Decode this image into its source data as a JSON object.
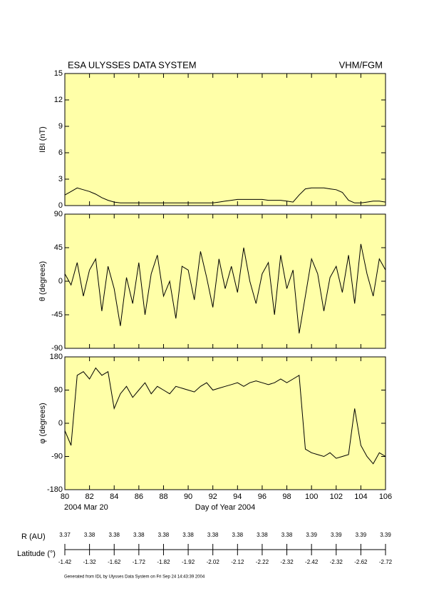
{
  "header": {
    "title": "ESA ULYSSES DATA SYSTEM",
    "instrument": "VHM/FGM"
  },
  "chart_data": [
    {
      "type": "line",
      "ylabel": "IBI (nT)",
      "color": "#000000",
      "background": "#ffffa8",
      "xlim": [
        80,
        106
      ],
      "xticks": [
        80,
        82,
        84,
        86,
        88,
        90,
        92,
        94,
        96,
        98,
        100,
        102,
        104,
        106
      ],
      "ylim": [
        0,
        15
      ],
      "yticks": [
        0,
        3,
        6,
        9,
        12,
        15
      ],
      "x": [
        80,
        80.5,
        81,
        81.5,
        82,
        82.5,
        83,
        83.5,
        84,
        84.5,
        85,
        85.5,
        86,
        86.5,
        87,
        87.5,
        88,
        88.5,
        89,
        89.5,
        90,
        90.5,
        91,
        91.5,
        92,
        92.5,
        93,
        93.5,
        94,
        94.5,
        95,
        95.5,
        96,
        96.5,
        97,
        97.5,
        98,
        98.5,
        99,
        99.5,
        100,
        100.5,
        101,
        101.5,
        102,
        102.5,
        103,
        103.5,
        104,
        104.5,
        105,
        105.5,
        106
      ],
      "values": [
        1.2,
        1.6,
        2.0,
        1.8,
        1.6,
        1.3,
        0.9,
        0.6,
        0.4,
        0.3,
        0.3,
        0.3,
        0.3,
        0.3,
        0.3,
        0.3,
        0.3,
        0.3,
        0.3,
        0.3,
        0.3,
        0.3,
        0.3,
        0.3,
        0.3,
        0.4,
        0.5,
        0.6,
        0.7,
        0.7,
        0.7,
        0.7,
        0.7,
        0.6,
        0.6,
        0.6,
        0.5,
        0.4,
        1.2,
        1.9,
        2.0,
        2.0,
        2.0,
        1.9,
        1.8,
        1.5,
        0.6,
        0.3,
        0.3,
        0.4,
        0.5,
        0.5,
        0.4
      ]
    },
    {
      "type": "line",
      "ylabel": "θ (degrees)",
      "color": "#000000",
      "background": "#ffffa8",
      "xlim": [
        80,
        106
      ],
      "xticks": [
        80,
        82,
        84,
        86,
        88,
        90,
        92,
        94,
        96,
        98,
        100,
        102,
        104,
        106
      ],
      "ylim": [
        -90,
        90
      ],
      "yticks": [
        -90,
        -45,
        0,
        45,
        90
      ],
      "x": [
        80,
        80.5,
        81,
        81.5,
        82,
        82.5,
        83,
        83.5,
        84,
        84.5,
        85,
        85.5,
        86,
        86.5,
        87,
        87.5,
        88,
        88.5,
        89,
        89.5,
        90,
        90.5,
        91,
        91.5,
        92,
        92.5,
        93,
        93.5,
        94,
        94.5,
        95,
        95.5,
        96,
        96.5,
        97,
        97.5,
        98,
        98.5,
        99,
        99.5,
        100,
        100.5,
        101,
        101.5,
        102,
        102.5,
        103,
        103.5,
        104,
        104.5,
        105,
        105.5,
        106
      ],
      "values": [
        10,
        -5,
        25,
        -20,
        15,
        30,
        -40,
        20,
        -10,
        -60,
        5,
        -30,
        25,
        -45,
        10,
        35,
        -20,
        0,
        -50,
        20,
        15,
        -25,
        40,
        5,
        -35,
        30,
        -10,
        20,
        -15,
        45,
        0,
        -30,
        10,
        25,
        -45,
        35,
        -10,
        15,
        -70,
        -20,
        30,
        10,
        -40,
        5,
        20,
        -15,
        35,
        -30,
        50,
        10,
        -20,
        30,
        15
      ]
    },
    {
      "type": "line",
      "ylabel": "φ (degrees)",
      "xlabel": "Day of Year 2004",
      "start_label": "2004 Mar 20",
      "color": "#000000",
      "background": "#ffffa8",
      "xlim": [
        80,
        106
      ],
      "xticks": [
        80,
        82,
        84,
        86,
        88,
        90,
        92,
        94,
        96,
        98,
        100,
        102,
        104,
        106
      ],
      "ylim": [
        -180,
        180
      ],
      "yticks": [
        -180,
        -90,
        0,
        90,
        180
      ],
      "x": [
        80,
        80.5,
        81,
        81.5,
        82,
        82.5,
        83,
        83.5,
        84,
        84.5,
        85,
        85.5,
        86,
        86.5,
        87,
        87.5,
        88,
        88.5,
        89,
        89.5,
        90,
        90.5,
        91,
        91.5,
        92,
        92.5,
        93,
        93.5,
        94,
        94.5,
        95,
        95.5,
        96,
        96.5,
        97,
        97.5,
        98,
        98.5,
        99,
        99.5,
        100,
        100.5,
        101,
        101.5,
        102,
        102.5,
        103,
        103.5,
        104,
        104.5,
        105,
        105.5,
        106
      ],
      "values": [
        -20,
        -60,
        130,
        140,
        120,
        150,
        130,
        140,
        40,
        80,
        100,
        70,
        90,
        110,
        80,
        100,
        90,
        80,
        100,
        95,
        90,
        85,
        100,
        110,
        90,
        95,
        100,
        105,
        110,
        100,
        110,
        115,
        110,
        105,
        110,
        120,
        110,
        120,
        130,
        -70,
        -80,
        -85,
        -90,
        -80,
        -95,
        -90,
        -85,
        40,
        -60,
        -90,
        -110,
        -80,
        -90
      ]
    }
  ],
  "ephemeris": {
    "r_label": "R (AU)",
    "r_values": [
      3.37,
      3.38,
      3.38,
      3.38,
      3.38,
      3.38,
      3.38,
      3.38,
      3.38,
      3.38,
      3.39,
      3.39,
      3.39,
      3.39
    ],
    "lat_label": "Latitude (°)",
    "lat_values": [
      -1.42,
      -1.32,
      -1.62,
      -1.72,
      -1.82,
      -1.92,
      -2.02,
      -2.12,
      -2.22,
      -2.32,
      -2.42,
      -2.32,
      -2.62,
      -2.72
    ]
  },
  "footer": "Generated from IDL by Ulysses Data System on Fri Sep 24 14:43:39 2004"
}
